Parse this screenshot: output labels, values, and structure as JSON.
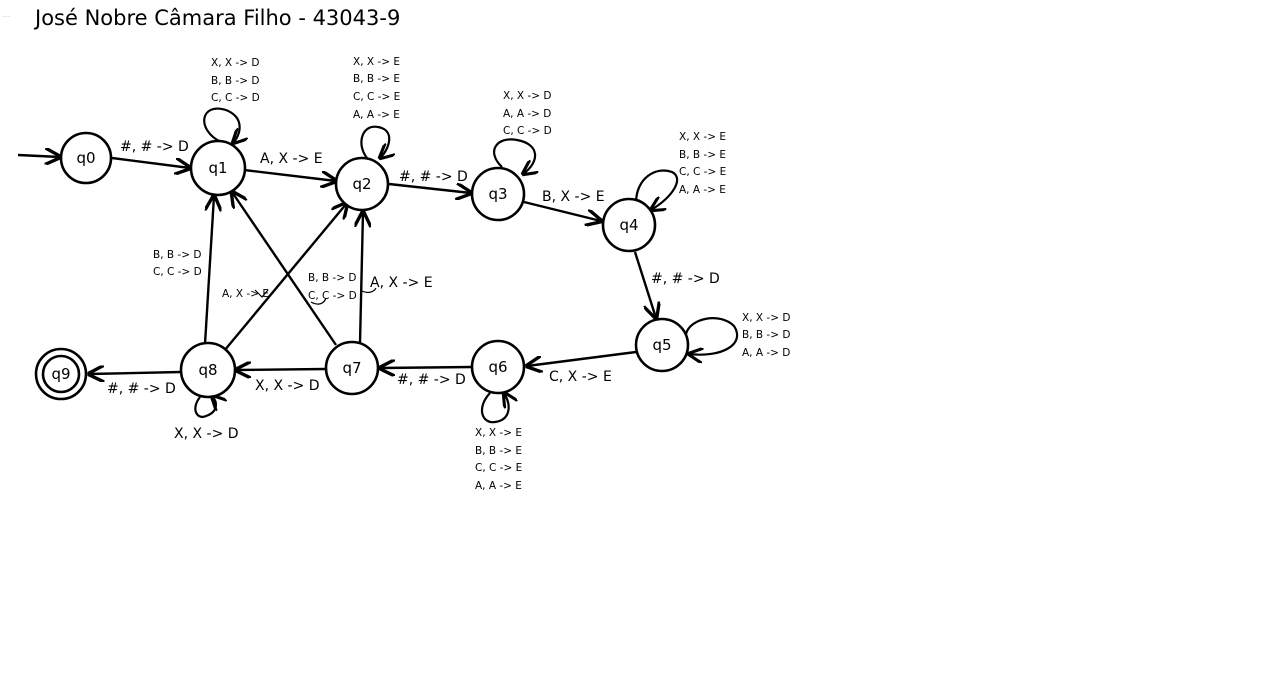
{
  "title": "José Nobre Câmara Filho - 43043-9",
  "states": {
    "q0": "q0",
    "q1": "q1",
    "q2": "q2",
    "q3": "q3",
    "q4": "q4",
    "q5": "q5",
    "q6": "q6",
    "q7": "q7",
    "q8": "q8",
    "q9": "q9"
  },
  "transitions": {
    "q0_q1": "#, # -> D",
    "q1_q2": "A, X -> E",
    "q2_q3": "#, # -> D",
    "q3_q4": "B, X -> E",
    "q4_q5": "#, # -> D",
    "q5_q6": "C, X -> E",
    "q6_q7": "#, # -> D",
    "q7_q8": "X, X -> D",
    "q8_q9": "#, # -> D",
    "q7_q2": "A, X -> E",
    "q8_q1": [
      "B, B -> D",
      "C, C -> D"
    ],
    "q8_q2": "A, X -> E",
    "q7_q1": [
      "B, B -> D",
      "C, C -> D"
    ]
  },
  "loops": {
    "q1": [
      "X, X -> D",
      "B, B -> D",
      "C, C -> D"
    ],
    "q2": [
      "X, X -> E",
      "B, B -> E",
      "C, C -> E",
      "A, A -> E"
    ],
    "q3": [
      "X, X -> D",
      "A, A -> D",
      "C, C -> D"
    ],
    "q4": [
      "X, X -> E",
      "B, B -> E",
      "C, C -> E",
      "A, A -> E"
    ],
    "q5": [
      "X, X -> D",
      "B, B -> D",
      "A, A -> D"
    ],
    "q6": [
      "X, X -> E",
      "B, B -> E",
      "C, C -> E",
      "A, A -> E"
    ],
    "q8": "X, X -> D"
  }
}
